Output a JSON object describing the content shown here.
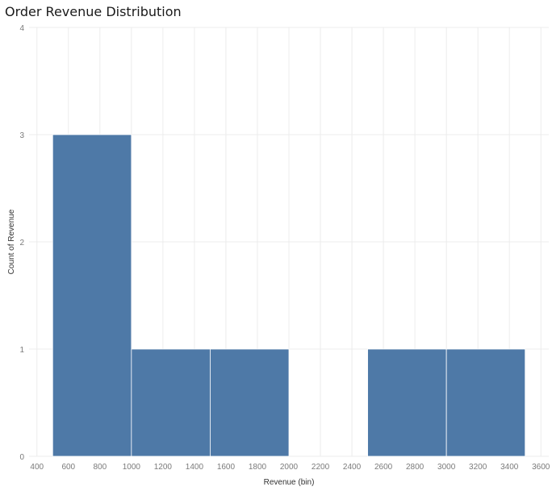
{
  "chart_data": {
    "type": "bar",
    "title": "Order Revenue Distribution",
    "xlabel": "Revenue (bin)",
    "ylabel": "Count of Revenue",
    "bin_width": 500,
    "bins": [
      {
        "start": 500,
        "end": 1000,
        "count": 3
      },
      {
        "start": 1000,
        "end": 1500,
        "count": 1
      },
      {
        "start": 1500,
        "end": 2000,
        "count": 1
      },
      {
        "start": 2000,
        "end": 2500,
        "count": 0
      },
      {
        "start": 2500,
        "end": 3000,
        "count": 1
      },
      {
        "start": 3000,
        "end": 3500,
        "count": 1
      }
    ],
    "xlim": [
      350,
      3650
    ],
    "ylim": [
      0,
      4
    ],
    "x_ticks": [
      400,
      600,
      800,
      1000,
      1200,
      1400,
      1600,
      1800,
      2000,
      2200,
      2400,
      2600,
      2800,
      3000,
      3200,
      3400,
      3600
    ],
    "y_ticks": [
      0,
      1,
      2,
      3,
      4
    ],
    "grid": true,
    "legend": "none",
    "colors": {
      "bar": "#4e79a7",
      "bar_edge": "#ffffff",
      "grid": "#ececec"
    }
  }
}
